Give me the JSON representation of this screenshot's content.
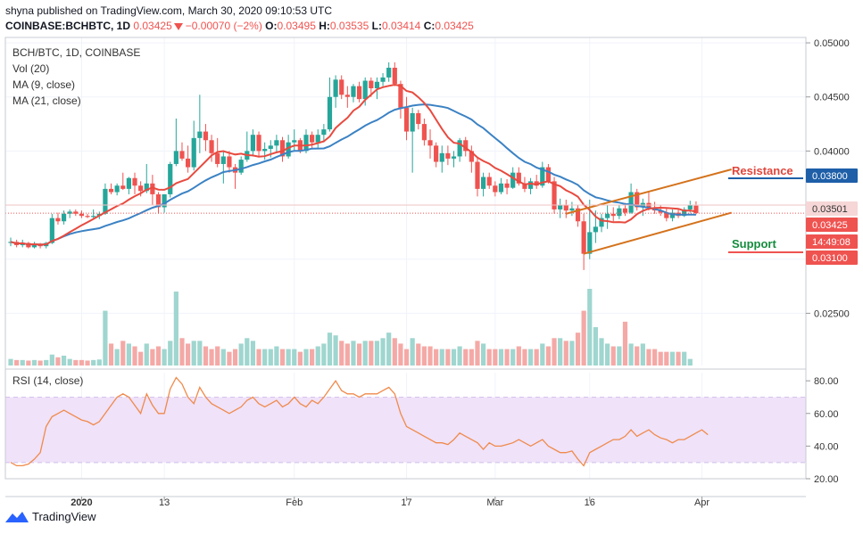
{
  "header": {
    "published": "shyna published on TradingView.com, March 30, 2020 09:10:53 UTC",
    "symbol": "COINBASE:BCHBTC, 1D",
    "last": "0.03425",
    "change": "−0.00070 (−2%)",
    "open_label": "O:",
    "open": "0.03495",
    "high_label": "H:",
    "high": "0.03535",
    "low_label": "L:",
    "low": "0.03414",
    "close_label": "C:",
    "close": "0.03425"
  },
  "legend": {
    "pair": "BCH/BTC, 1D, COINBASE",
    "vol": "Vol (20)",
    "ma9": "MA (9, close)",
    "ma21": "MA (21, close)"
  },
  "annotations": {
    "resistance": "Resistance",
    "support": "Support"
  },
  "price_axis": {
    "ticks": [
      "0.05000",
      "0.04500",
      "0.04000",
      "0.02500"
    ],
    "markers": [
      {
        "text": "0.03800",
        "value": 0.038,
        "color": "#1e5fa8"
      },
      {
        "text": "0.03501",
        "value": 0.03501,
        "color": "#f6d6d6"
      },
      {
        "text": "0.03425",
        "value": 0.03425,
        "color": "#ef5350"
      },
      {
        "text": "14:49:08",
        "value": 0.0333,
        "color": "#ef5350"
      },
      {
        "text": "0.03100",
        "value": 0.031,
        "color": "#ef5350"
      }
    ]
  },
  "rsi": {
    "label": "RSI (14, close)",
    "ticks": [
      "80.00",
      "60.00",
      "40.00",
      "20.00"
    ]
  },
  "x_axis": {
    "labels": [
      "2020",
      "13",
      "Feb",
      "17",
      "Mar",
      "16",
      "Apr"
    ]
  },
  "footer": {
    "brand": "TradingView"
  },
  "colors": {
    "up": "#26a69a",
    "down": "#ef5350",
    "ma9": "#e84a3f",
    "ma21": "#3b82c4",
    "trend": "#d4721b",
    "rsi": "#f08a4b",
    "rsi_band": "#efe2f9"
  },
  "chart_data": {
    "type": "candlestick",
    "y_range": [
      0.0205,
      0.0505
    ],
    "rsi_range": [
      20,
      85
    ],
    "candles": [
      [
        0.0315,
        0.032,
        0.0312,
        0.0316
      ],
      [
        0.0316,
        0.0318,
        0.0311,
        0.0313
      ],
      [
        0.0313,
        0.0318,
        0.0311,
        0.0315
      ],
      [
        0.0315,
        0.0316,
        0.031,
        0.0311
      ],
      [
        0.0311,
        0.0316,
        0.031,
        0.0314
      ],
      [
        0.0314,
        0.0315,
        0.031,
        0.0312
      ],
      [
        0.0312,
        0.0316,
        0.031,
        0.0315
      ],
      [
        0.0315,
        0.0342,
        0.0314,
        0.0338
      ],
      [
        0.0338,
        0.0343,
        0.0332,
        0.0335
      ],
      [
        0.0335,
        0.0345,
        0.0332,
        0.0342
      ],
      [
        0.0342,
        0.0346,
        0.0338,
        0.0344
      ],
      [
        0.0344,
        0.0346,
        0.034,
        0.0342
      ],
      [
        0.0342,
        0.0345,
        0.0338,
        0.034
      ],
      [
        0.034,
        0.0342,
        0.0338,
        0.0339
      ],
      [
        0.0339,
        0.0346,
        0.0338,
        0.034
      ],
      [
        0.034,
        0.0344,
        0.0337,
        0.0342
      ],
      [
        0.0342,
        0.037,
        0.0341,
        0.0365
      ],
      [
        0.0365,
        0.037,
        0.036,
        0.0362
      ],
      [
        0.0362,
        0.037,
        0.0359,
        0.0368
      ],
      [
        0.0368,
        0.038,
        0.0364,
        0.0365
      ],
      [
        0.0365,
        0.0376,
        0.036,
        0.0375
      ],
      [
        0.0375,
        0.038,
        0.036,
        0.0368
      ],
      [
        0.0368,
        0.0372,
        0.0358,
        0.0363
      ],
      [
        0.0363,
        0.0388,
        0.0361,
        0.037
      ],
      [
        0.037,
        0.0378,
        0.035,
        0.036
      ],
      [
        0.036,
        0.0362,
        0.0342,
        0.0348
      ],
      [
        0.0348,
        0.036,
        0.0343,
        0.036
      ],
      [
        0.036,
        0.039,
        0.0357,
        0.0388
      ],
      [
        0.0388,
        0.043,
        0.0386,
        0.04
      ],
      [
        0.04,
        0.0408,
        0.0391,
        0.0393
      ],
      [
        0.0393,
        0.0405,
        0.038,
        0.0385
      ],
      [
        0.0385,
        0.0428,
        0.0382,
        0.0412
      ],
      [
        0.0412,
        0.0452,
        0.0398,
        0.0418
      ],
      [
        0.0418,
        0.0425,
        0.04,
        0.041
      ],
      [
        0.041,
        0.0415,
        0.039,
        0.0398
      ],
      [
        0.0398,
        0.0412,
        0.0385,
        0.0388
      ],
      [
        0.0388,
        0.04,
        0.037,
        0.0395
      ],
      [
        0.0395,
        0.04,
        0.038,
        0.0385
      ],
      [
        0.0385,
        0.0388,
        0.0365,
        0.038
      ],
      [
        0.038,
        0.0395,
        0.0378,
        0.0392
      ],
      [
        0.0392,
        0.0418,
        0.039,
        0.04
      ],
      [
        0.04,
        0.042,
        0.0395,
        0.0415
      ],
      [
        0.0415,
        0.0418,
        0.0395,
        0.04
      ],
      [
        0.04,
        0.0408,
        0.0392,
        0.0402
      ],
      [
        0.0402,
        0.041,
        0.0394,
        0.0405
      ],
      [
        0.0405,
        0.0415,
        0.0398,
        0.041
      ],
      [
        0.041,
        0.0413,
        0.039,
        0.0395
      ],
      [
        0.0395,
        0.0415,
        0.0393,
        0.0408
      ],
      [
        0.0408,
        0.042,
        0.04,
        0.041
      ],
      [
        0.041,
        0.0412,
        0.0398,
        0.04
      ],
      [
        0.04,
        0.042,
        0.0398,
        0.0415
      ],
      [
        0.0415,
        0.0418,
        0.0402,
        0.0408
      ],
      [
        0.0408,
        0.042,
        0.0402,
        0.0415
      ],
      [
        0.0415,
        0.0425,
        0.0408,
        0.042
      ],
      [
        0.042,
        0.0468,
        0.0418,
        0.045
      ],
      [
        0.045,
        0.047,
        0.044,
        0.0466
      ],
      [
        0.0466,
        0.047,
        0.0448,
        0.0452
      ],
      [
        0.0452,
        0.046,
        0.044,
        0.045
      ],
      [
        0.045,
        0.0462,
        0.0445,
        0.046
      ],
      [
        0.046,
        0.0464,
        0.0445,
        0.0448
      ],
      [
        0.0448,
        0.0468,
        0.0442,
        0.0465
      ],
      [
        0.0465,
        0.0468,
        0.045,
        0.0458
      ],
      [
        0.0458,
        0.0468,
        0.0448,
        0.0464
      ],
      [
        0.0464,
        0.0472,
        0.046,
        0.0468
      ],
      [
        0.0468,
        0.0482,
        0.0464,
        0.0477
      ],
      [
        0.0477,
        0.0482,
        0.046,
        0.0462
      ],
      [
        0.0462,
        0.0465,
        0.043,
        0.044
      ],
      [
        0.044,
        0.045,
        0.041,
        0.0418
      ],
      [
        0.0418,
        0.044,
        0.038,
        0.0435
      ],
      [
        0.0435,
        0.0438,
        0.042,
        0.0425
      ],
      [
        0.0425,
        0.043,
        0.0405,
        0.041
      ],
      [
        0.041,
        0.042,
        0.0393,
        0.0405
      ],
      [
        0.0405,
        0.0408,
        0.0385,
        0.039
      ],
      [
        0.039,
        0.0405,
        0.038,
        0.0398
      ],
      [
        0.0398,
        0.0405,
        0.0387,
        0.0393
      ],
      [
        0.0393,
        0.04,
        0.0385,
        0.0395
      ],
      [
        0.0395,
        0.0412,
        0.039,
        0.041
      ],
      [
        0.041,
        0.0413,
        0.0395,
        0.04
      ],
      [
        0.04,
        0.0405,
        0.038,
        0.039
      ],
      [
        0.039,
        0.0395,
        0.0358,
        0.0365
      ],
      [
        0.0365,
        0.038,
        0.0358,
        0.0376
      ],
      [
        0.0376,
        0.038,
        0.0365,
        0.0368
      ],
      [
        0.0368,
        0.0372,
        0.0358,
        0.0362
      ],
      [
        0.0362,
        0.0375,
        0.036,
        0.037
      ],
      [
        0.037,
        0.0374,
        0.036,
        0.0366
      ],
      [
        0.0366,
        0.0385,
        0.0365,
        0.038
      ],
      [
        0.038,
        0.0385,
        0.0368,
        0.037
      ],
      [
        0.037,
        0.0376,
        0.0362,
        0.0365
      ],
      [
        0.0365,
        0.0375,
        0.036,
        0.0372
      ],
      [
        0.0372,
        0.0378,
        0.0365,
        0.0368
      ],
      [
        0.0368,
        0.039,
        0.0366,
        0.0385
      ],
      [
        0.0385,
        0.0388,
        0.037,
        0.0372
      ],
      [
        0.0372,
        0.0376,
        0.0342,
        0.0346
      ],
      [
        0.0346,
        0.0356,
        0.0338,
        0.035
      ],
      [
        0.035,
        0.0355,
        0.0338,
        0.0345
      ],
      [
        0.0345,
        0.0353,
        0.034,
        0.0347
      ],
      [
        0.0347,
        0.035,
        0.033,
        0.0335
      ],
      [
        0.0335,
        0.0342,
        0.029,
        0.0305
      ],
      [
        0.0305,
        0.0355,
        0.03,
        0.0325
      ],
      [
        0.0325,
        0.0345,
        0.0315,
        0.033
      ],
      [
        0.033,
        0.0342,
        0.0325,
        0.0338
      ],
      [
        0.0338,
        0.035,
        0.0328,
        0.0342
      ],
      [
        0.0342,
        0.0348,
        0.0335,
        0.034
      ],
      [
        0.034,
        0.035,
        0.0337,
        0.0347
      ],
      [
        0.0347,
        0.0352,
        0.034,
        0.0343
      ],
      [
        0.0343,
        0.037,
        0.0342,
        0.0362
      ],
      [
        0.0362,
        0.0365,
        0.0345,
        0.0348
      ],
      [
        0.0348,
        0.0356,
        0.034,
        0.0352
      ],
      [
        0.0352,
        0.0362,
        0.0345,
        0.0348
      ],
      [
        0.0348,
        0.0353,
        0.0342,
        0.0345
      ],
      [
        0.0345,
        0.035,
        0.034,
        0.0343
      ],
      [
        0.0343,
        0.0348,
        0.0335,
        0.0338
      ],
      [
        0.0338,
        0.0346,
        0.0335,
        0.0343
      ],
      [
        0.0343,
        0.0347,
        0.0338,
        0.034
      ],
      [
        0.034,
        0.0348,
        0.0339,
        0.0346
      ],
      [
        0.0346,
        0.0354,
        0.0343,
        0.035
      ],
      [
        0.03495,
        0.03535,
        0.03414,
        0.03425
      ]
    ],
    "volume": [
      1.2,
      1,
      1,
      0.9,
      1,
      0.9,
      1,
      2,
      1.5,
      1.8,
      1.2,
      1,
      1,
      0.9,
      1,
      1.1,
      10,
      4,
      3,
      4.5,
      4,
      3.5,
      2.5,
      4,
      3,
      3.5,
      3,
      4.5,
      13.5,
      5,
      4,
      4.5,
      4.5,
      3.5,
      3,
      3.5,
      3,
      2.5,
      3,
      4,
      5,
      4.5,
      3,
      3,
      3,
      3.5,
      3,
      3,
      3,
      2.5,
      3,
      3,
      3.5,
      4,
      6,
      5.5,
      4.5,
      4,
      4.5,
      4,
      4.5,
      4.5,
      4.5,
      5,
      6,
      5,
      4,
      3,
      5,
      4,
      3.5,
      3.5,
      3,
      3,
      3,
      3,
      3.5,
      3,
      3,
      4.5,
      4,
      3,
      3,
      3,
      3,
      3,
      3.5,
      3,
      3,
      3,
      4,
      3.5,
      5,
      5,
      4.5,
      4.5,
      6,
      10,
      14,
      7,
      5,
      4,
      3.5,
      3.5,
      8,
      4,
      3.5,
      4,
      3,
      3,
      2.5,
      2.5,
      2.5,
      2.5,
      2.5,
      1.2
    ],
    "rsi": [
      30,
      28,
      28,
      29,
      32,
      36,
      52,
      58,
      60,
      62,
      60,
      58,
      56,
      55,
      53,
      55,
      60,
      65,
      70,
      72,
      70,
      65,
      60,
      72,
      65,
      60,
      60,
      75,
      82,
      78,
      70,
      66,
      76,
      70,
      66,
      64,
      62,
      60,
      62,
      64,
      68,
      70,
      66,
      64,
      66,
      68,
      64,
      66,
      70,
      66,
      64,
      68,
      66,
      70,
      75,
      80,
      74,
      72,
      72,
      70,
      72,
      72,
      72,
      74,
      76,
      72,
      60,
      52,
      50,
      48,
      46,
      44,
      42,
      42,
      41,
      44,
      48,
      46,
      44,
      42,
      38,
      42,
      40,
      40,
      41,
      42,
      44,
      42,
      40,
      42,
      44,
      40,
      38,
      36,
      36,
      37,
      32,
      28,
      36,
      38,
      40,
      42,
      44,
      44,
      46,
      50,
      46,
      48,
      50,
      47,
      45,
      44,
      42,
      44,
      44,
      46,
      48,
      50,
      47
    ]
  }
}
